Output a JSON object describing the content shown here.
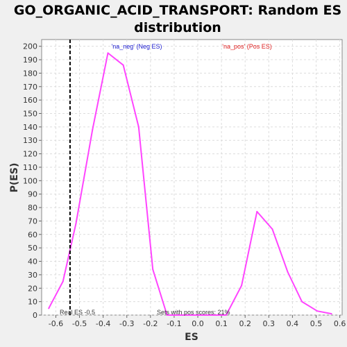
{
  "chart_data": {
    "type": "line",
    "title_lines": [
      "GO_ORGANIC_ACID_TRANSPORT: Random ES",
      "distribution"
    ],
    "xlabel": "ES",
    "ylabel": "P(ES)",
    "xlim": [
      -0.66,
      0.61
    ],
    "ylim": [
      0,
      205
    ],
    "xticks": [
      -0.6,
      -0.5,
      -0.4,
      -0.3,
      -0.2,
      -0.1,
      0.0,
      0.1,
      0.2,
      0.3,
      0.4,
      0.5,
      0.6
    ],
    "xtick_labels": [
      "-0.6",
      "-0.5",
      "-0.4",
      "-0.3",
      "-0.2",
      "-0.1",
      "0.0",
      "0.1",
      "0.2",
      "0.3",
      "0.4",
      "0.5",
      "0.6"
    ],
    "yticks": [
      0,
      10,
      20,
      30,
      40,
      50,
      60,
      70,
      80,
      90,
      100,
      110,
      120,
      130,
      140,
      150,
      160,
      170,
      180,
      190,
      200
    ],
    "ytick_labels": [
      "0",
      "10",
      "20",
      "30",
      "40",
      "50",
      "60",
      "70",
      "80",
      "90",
      "100",
      "110",
      "120",
      "130",
      "140",
      "150",
      "160",
      "170",
      "180",
      "190",
      "200"
    ],
    "grid": true,
    "series": [
      {
        "name": "",
        "color": "#ff44ff",
        "x": [
          -0.63,
          -0.57,
          -0.515,
          -0.445,
          -0.38,
          -0.315,
          -0.25,
          -0.19,
          -0.13,
          -0.065,
          0.0,
          0.06,
          0.12,
          0.185,
          0.25,
          0.315,
          0.38,
          0.44,
          0.505,
          0.565
        ],
        "y": [
          5,
          25,
          68,
          138,
          195,
          186,
          140,
          34,
          0,
          0,
          0,
          0,
          0,
          22,
          77,
          64,
          32,
          10,
          3,
          1
        ]
      }
    ],
    "real_es": {
      "x": -0.54,
      "label": "Real ES -0.5"
    },
    "legend": {
      "neg": "'na_neg' (Neg ES)",
      "pos": "'na_pos' (Pos ES)",
      "neg_color": "#2020d0",
      "pos_color": "#e02020"
    },
    "annotation": "Sets with pos scores: 21%"
  }
}
